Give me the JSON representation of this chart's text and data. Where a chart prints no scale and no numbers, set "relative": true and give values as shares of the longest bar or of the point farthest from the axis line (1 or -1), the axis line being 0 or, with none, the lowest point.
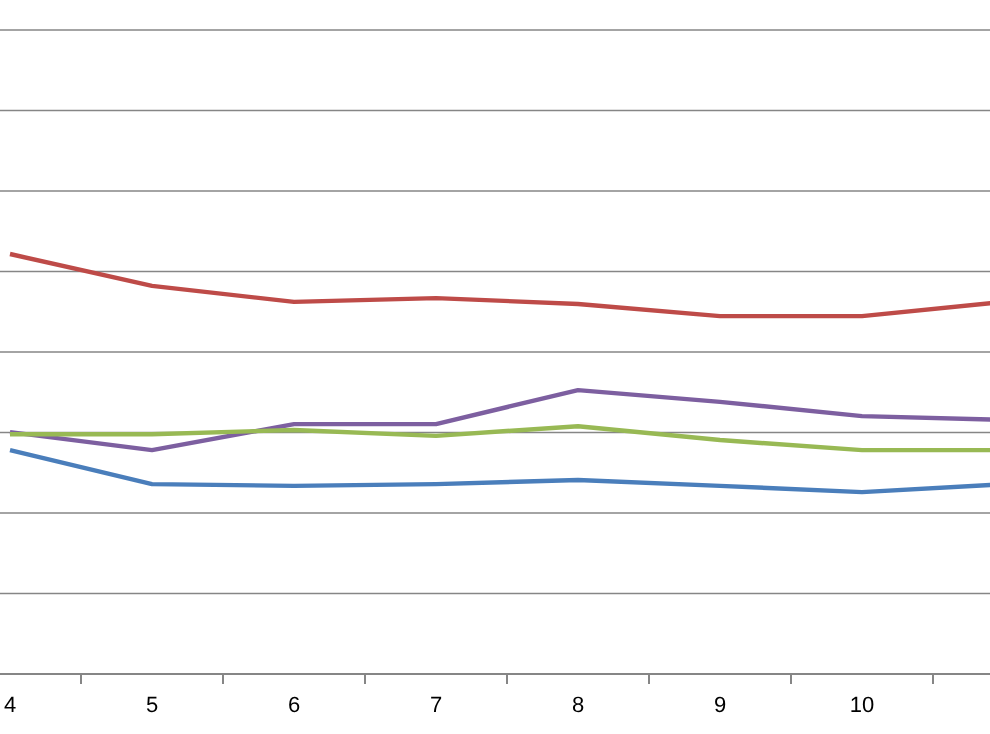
{
  "chart_data": {
    "type": "line",
    "relative": true,
    "grid": "y",
    "marker": "none",
    "line_style": "solid",
    "categories": [
      "4",
      "5",
      "6",
      "7",
      "8",
      "9",
      "10",
      null
    ],
    "series": [
      {
        "color": "#be4b48",
        "values": [
          1,
          0.924,
          0.886,
          0.895,
          0.881,
          0.852,
          0.852,
          0.886
        ]
      },
      {
        "color": "#7d5fa0",
        "values": [
          0.576,
          0.533,
          0.595,
          0.595,
          0.676,
          0.648,
          0.614,
          0.605
        ]
      },
      {
        "color": "#98b954",
        "values": [
          0.571,
          0.571,
          0.581,
          0.567,
          0.59,
          0.557,
          0.533,
          0.533
        ]
      },
      {
        "color": "#4a7ebb",
        "values": [
          0.533,
          0.452,
          0.448,
          0.452,
          0.462,
          0.448,
          0.433,
          0.452
        ]
      }
    ]
  }
}
